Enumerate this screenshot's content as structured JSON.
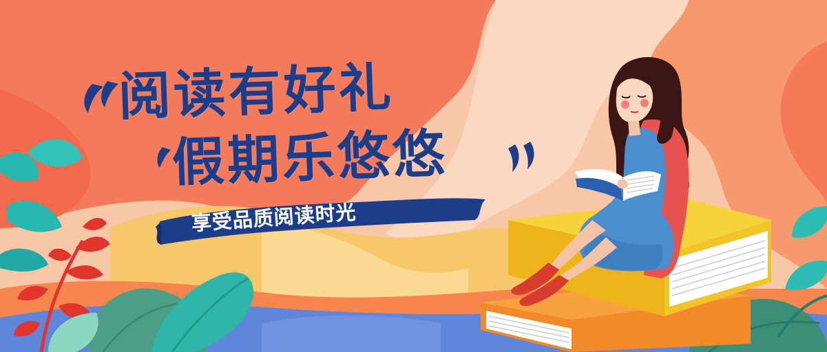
{
  "banner": {
    "title_line1": "阅读有好礼",
    "title_line2": "假期乐悠悠",
    "subtitle": "享受品质阅读时光"
  },
  "colors": {
    "title": "#1c3d8a",
    "ribbon": "#1c3d8a",
    "background_top": "#f3a07e",
    "orange_blob": "#f36a45",
    "peach": "#fbd9c3",
    "yellow": "#f8cc62",
    "blue_floor": "#5d82d6",
    "book_yellow": "#f3c427",
    "book_orange": "#f7912c",
    "dress": "#4a8ed0",
    "cardigan": "#e8524f",
    "hair": "#3a1714",
    "leaf_teal": "#2bbdb3",
    "leaf_green": "#3c9e83",
    "leaf_red": "#e1342d"
  },
  "icons": {
    "quote_left": "open-quote-icon",
    "quote_right": "close-quote-icon"
  }
}
